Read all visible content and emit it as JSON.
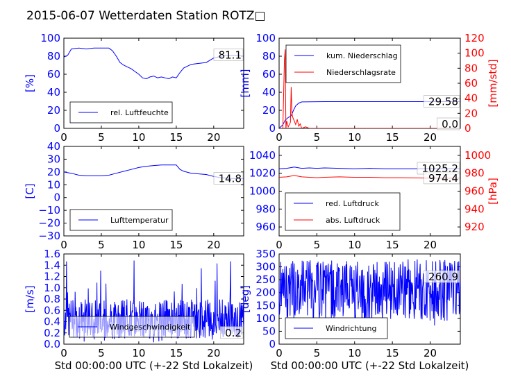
{
  "title": "2015-06-07 Wetterdaten Station ROTZ",
  "title_glyph": "□",
  "colors": {
    "blue": "#0000ff",
    "red": "#ff0000",
    "black": "#000000"
  },
  "chart_data": [
    {
      "type": "line",
      "ylabel": "[%]",
      "xlabel": "",
      "xlim": [
        0,
        24
      ],
      "ylim": [
        0,
        100
      ],
      "xticks": [
        "0",
        "5",
        "10",
        "15",
        "20"
      ],
      "yticks": [
        "0",
        "20",
        "40",
        "60",
        "80",
        "100"
      ],
      "legend_position": "lower-left",
      "annotation": "81.1",
      "series": [
        {
          "name": "rel. Luftfeuchte",
          "color": "#0000ff",
          "x": [
            0,
            0.5,
            1,
            2,
            3,
            4,
            5,
            6,
            6.5,
            7,
            7.5,
            8,
            8.5,
            9,
            9.5,
            10,
            10.5,
            11,
            11.5,
            12,
            12.5,
            13,
            13.5,
            14,
            14.5,
            15,
            15.5,
            16,
            17,
            18,
            19,
            20,
            21,
            22,
            23,
            24
          ],
          "y": [
            79,
            81,
            88,
            89,
            88,
            89,
            89,
            89,
            86,
            80,
            73,
            70,
            68,
            66,
            63,
            60,
            56,
            55,
            57,
            58,
            56,
            57,
            56,
            55,
            57,
            56,
            62,
            67,
            71,
            72,
            73,
            78,
            80,
            81,
            81,
            80
          ]
        }
      ]
    },
    {
      "type": "line",
      "ylabel": "[mm]",
      "ylabel_right": "[mm/std]",
      "xlabel": "",
      "xlim": [
        0,
        24
      ],
      "ylim": [
        0,
        100
      ],
      "ylim_right": [
        0,
        120
      ],
      "xticks": [
        "0",
        "5",
        "10",
        "15",
        "20"
      ],
      "yticks": [
        "0",
        "20",
        "40",
        "60",
        "80",
        "100"
      ],
      "yticks_right": [
        "0",
        "20",
        "40",
        "60",
        "80",
        "100",
        "120"
      ],
      "legend_position": "top-left",
      "annotations": [
        "29.58",
        "0.0"
      ],
      "series": [
        {
          "name": "kum. Niederschlag",
          "color": "#0000ff",
          "axis": "left",
          "x": [
            0,
            0.5,
            0.8,
            1.2,
            1.6,
            1.9,
            2.2,
            2.6,
            3,
            4,
            6,
            10,
            15,
            20,
            24
          ],
          "y": [
            0,
            4,
            9,
            12,
            14,
            20,
            25,
            28,
            29.3,
            29.5,
            29.58,
            29.58,
            29.58,
            29.58,
            29.58
          ]
        },
        {
          "name": "Niederschlagsrate",
          "color": "#ff0000",
          "axis": "right",
          "x": [
            0,
            0.5,
            0.7,
            0.8,
            0.9,
            1.0,
            1.2,
            1.5,
            1.6,
            1.7,
            1.8,
            2.0,
            2.2,
            2.4,
            2.6,
            2.8,
            3.0,
            3.5,
            4,
            24
          ],
          "y": [
            0,
            0,
            90,
            105,
            0,
            10,
            2,
            8,
            55,
            20,
            15,
            10,
            5,
            12,
            3,
            6,
            0,
            2,
            0,
            0
          ]
        }
      ]
    },
    {
      "type": "line",
      "ylabel": "[C]",
      "xlabel": "",
      "xlim": [
        0,
        24
      ],
      "ylim": [
        -30,
        40
      ],
      "xticks": [
        "0",
        "5",
        "10",
        "15",
        "20"
      ],
      "yticks": [
        "−30",
        "−20",
        "−10",
        "0",
        "10",
        "20",
        "30",
        "40"
      ],
      "legend_position": "lower-left",
      "annotation": "14.8",
      "series": [
        {
          "name": "Lufttemperatur",
          "color": "#0000ff",
          "x": [
            0,
            1,
            2,
            3,
            4,
            5,
            6,
            7,
            8,
            9,
            10,
            11,
            12,
            13,
            14,
            15,
            15.5,
            16,
            17,
            18,
            19,
            20,
            21,
            22,
            23,
            24
          ],
          "y": [
            20,
            19,
            17.5,
            17,
            17,
            17,
            17.5,
            19,
            20.5,
            22,
            23.5,
            24.5,
            25,
            25.5,
            25.5,
            25.5,
            22,
            20.5,
            19,
            18.5,
            18,
            16.5,
            15.5,
            15,
            14.8,
            14.8
          ]
        }
      ]
    },
    {
      "type": "line",
      "ylabel": "",
      "ylabel_right": "[hPa]",
      "xlabel": "",
      "xlim": [
        0,
        24
      ],
      "ylim": [
        950,
        1050
      ],
      "ylim_right": [
        910,
        1010
      ],
      "xticks": [
        "0",
        "5",
        "10",
        "15",
        "20"
      ],
      "yticks": [
        "960",
        "980",
        "1000",
        "1020",
        "1040"
      ],
      "yticks_right": [
        "920",
        "940",
        "960",
        "980",
        "1000"
      ],
      "legend_position": "lower-left",
      "annotations": [
        "1025.2",
        "974.4"
      ],
      "series": [
        {
          "name": "red. Luftdruck",
          "color": "#0000ff",
          "axis": "left",
          "x": [
            0,
            1,
            2,
            3,
            4,
            5,
            6,
            8,
            10,
            12,
            14,
            16,
            18,
            20,
            22,
            24
          ],
          "y": [
            1025,
            1025.5,
            1027,
            1025.5,
            1026,
            1025.5,
            1026,
            1025.5,
            1025,
            1025.5,
            1025,
            1025,
            1025,
            1025.2,
            1025.2,
            1025.2
          ]
        },
        {
          "name": "abs. Luftdruck",
          "color": "#ff0000",
          "axis": "right",
          "x": [
            0,
            1,
            2,
            3,
            4,
            5,
            6,
            8,
            10,
            12,
            14,
            16,
            18,
            20,
            22,
            24
          ],
          "y": [
            975.5,
            976,
            977.5,
            976,
            975.5,
            975,
            975.5,
            976,
            975.5,
            975.5,
            975,
            975,
            974.8,
            974.5,
            974.4,
            974.4
          ]
        }
      ]
    },
    {
      "type": "line",
      "ylabel": "[m/s]",
      "xlabel": "Std 00:00:00 UTC (+-22 Std Lokalzeit)",
      "xlim": [
        0,
        24
      ],
      "ylim": [
        0,
        1.6
      ],
      "xticks": [
        "0",
        "5",
        "10",
        "15",
        "20"
      ],
      "yticks": [
        "0.0",
        "0.2",
        "0.4",
        "0.6",
        "0.8",
        "1.0",
        "1.2",
        "1.4",
        "1.6"
      ],
      "legend_position": "lower-center",
      "annotation": "0.2",
      "series": [
        {
          "name": "Windgeschwindigkeit",
          "color": "#0000ff",
          "noise": {
            "seed": 7,
            "count": 480,
            "mean": 0.45,
            "spread": 0.35,
            "max": 1.5
          }
        }
      ]
    },
    {
      "type": "line",
      "ylabel": "[deg]",
      "xlabel": "Std 00:00:00 UTC (+-22 Std Lokalzeit)",
      "xlim": [
        0,
        24
      ],
      "ylim": [
        0,
        350
      ],
      "xticks": [
        "0",
        "5",
        "10",
        "15",
        "20"
      ],
      "yticks": [
        "0",
        "50",
        "100",
        "150",
        "200",
        "250",
        "300",
        "350"
      ],
      "legend_position": "lower-left",
      "annotation": "260.9",
      "series": [
        {
          "name": "Windrichtung",
          "color": "#0000ff",
          "noise": {
            "seed": 11,
            "count": 480,
            "mean": 210,
            "spread": 120,
            "max": 330
          }
        }
      ]
    }
  ]
}
